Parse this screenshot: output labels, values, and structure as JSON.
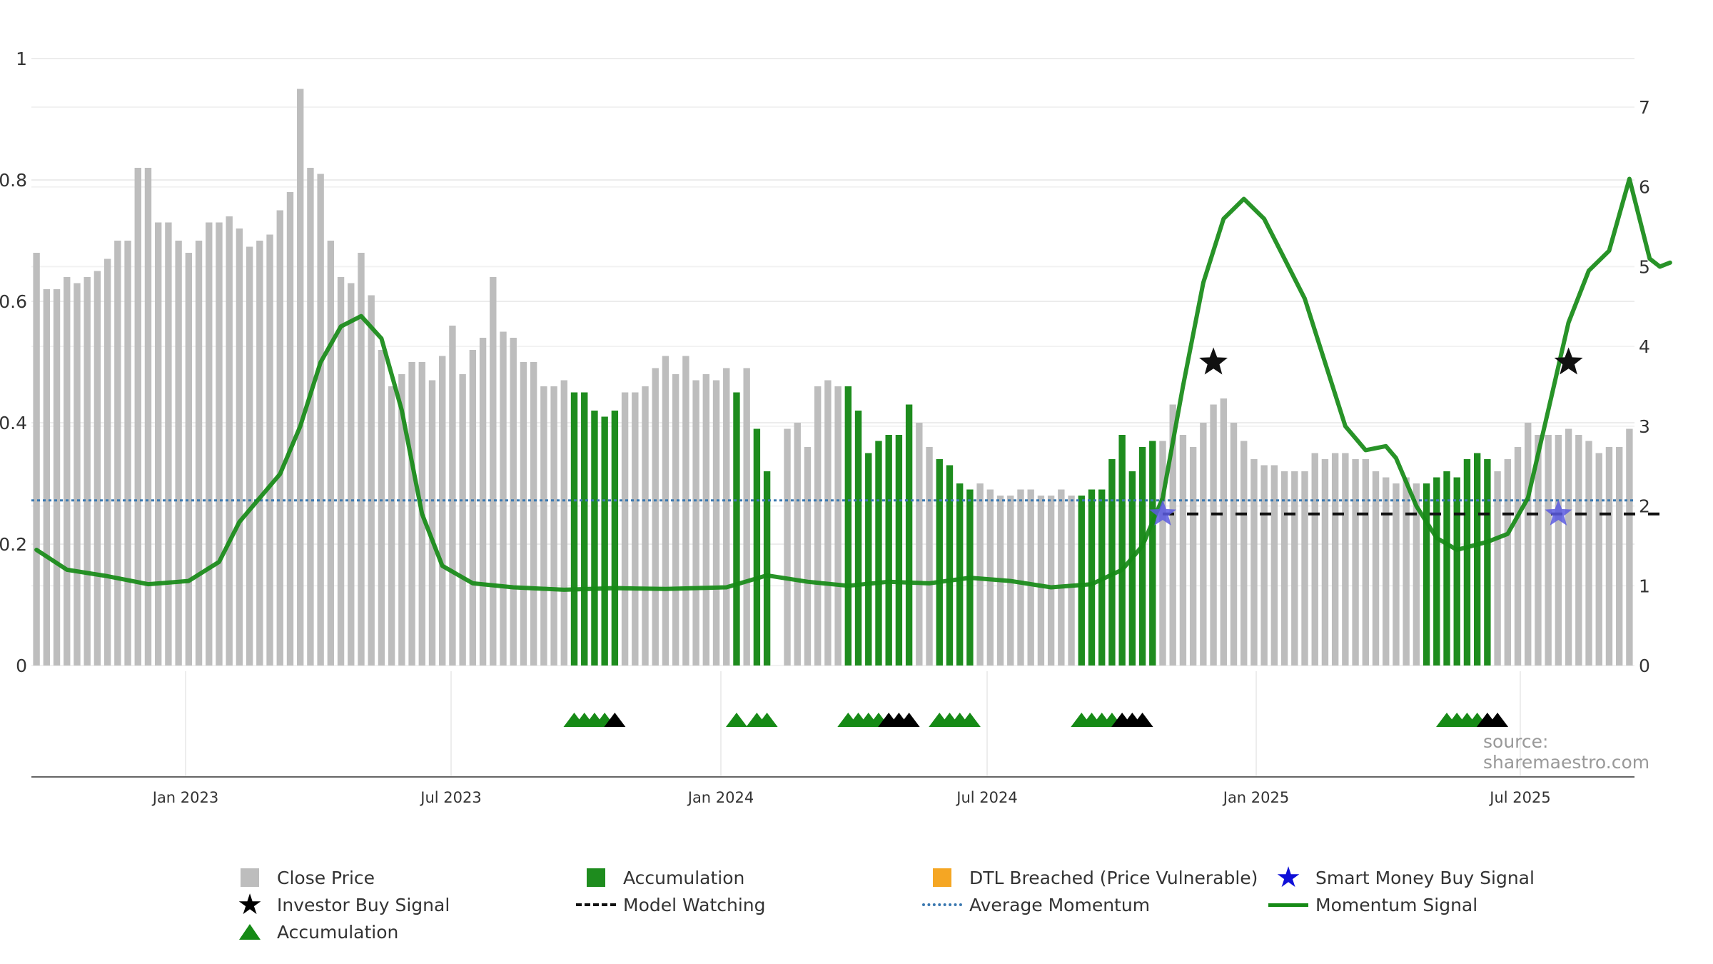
{
  "chart_data": {
    "type": "bar",
    "left_axis": {
      "ticks": [
        "0",
        "0.2",
        "0.4",
        "0.6",
        "0.8",
        "1"
      ],
      "range": [
        0,
        1
      ]
    },
    "right_axis": {
      "ticks": [
        "0",
        "1",
        "2",
        "3",
        "4",
        "5",
        "6",
        "7"
      ],
      "range": [
        0,
        7.6
      ]
    },
    "x_axis": {
      "ticks": [
        "Jan 2023",
        "Jul 2023",
        "Jan 2024",
        "Jul 2024",
        "Jan 2025",
        "Jul 2025"
      ]
    },
    "grid": true,
    "legend_position": "bottom",
    "series": [
      {
        "name": "Close Price",
        "type": "bar",
        "color": "#bdbdbd",
        "values": [
          0.68,
          0.62,
          0.62,
          0.64,
          0.63,
          0.64,
          0.65,
          0.67,
          0.7,
          0.7,
          0.82,
          0.82,
          0.73,
          0.73,
          0.7,
          0.68,
          0.7,
          0.73,
          0.73,
          0.74,
          0.72,
          0.69,
          0.7,
          0.71,
          0.75,
          0.78,
          0.95,
          0.82,
          0.81,
          0.7,
          0.64,
          0.63,
          0.68,
          0.61,
          0.52,
          0.46,
          0.48,
          0.5,
          0.5,
          0.47,
          0.51,
          0.56,
          0.48,
          0.52,
          0.54,
          0.64,
          0.55,
          0.54,
          0.5,
          0.5,
          0.46,
          0.46,
          0.47,
          0.45,
          0.45,
          0.42,
          0.41,
          0.42,
          0.45,
          0.45,
          0.46,
          0.49,
          0.51,
          0.48,
          0.51,
          0.47,
          0.48,
          0.47,
          0.49,
          0.45,
          0.49,
          0.39,
          0.32,
          null,
          0.39,
          0.4,
          0.36,
          0.46,
          0.47,
          0.46,
          0.46,
          0.42,
          0.35,
          0.37,
          0.38,
          0.38,
          0.43,
          0.4,
          0.36,
          0.34,
          0.33,
          0.3,
          0.29,
          0.3,
          0.29,
          0.28,
          0.28,
          0.29,
          0.29,
          0.28,
          0.28,
          0.29,
          0.28,
          0.28,
          0.29,
          0.29,
          0.34,
          0.38,
          0.32,
          0.36,
          0.37,
          0.37,
          0.43,
          0.38,
          0.36,
          0.4,
          0.43,
          0.44,
          0.4,
          0.37,
          0.34,
          0.33,
          0.33,
          0.32,
          0.32,
          0.32,
          0.35,
          0.34,
          0.35,
          0.35,
          0.34,
          0.34,
          0.32,
          0.31,
          0.3,
          0.31,
          0.3,
          0.3,
          0.31,
          0.32,
          0.31,
          0.34,
          0.35,
          0.34,
          0.32,
          0.34,
          0.36,
          0.4,
          0.38,
          0.38,
          0.38,
          0.39,
          0.38,
          0.37,
          0.35,
          0.36,
          0.36,
          0.39
        ]
      },
      {
        "name": "Accumulation",
        "type": "bar-highlight",
        "color": "#1e8c1e",
        "bar_indices": [
          53,
          54,
          55,
          56,
          57,
          69,
          71,
          72,
          80,
          81,
          82,
          83,
          84,
          85,
          86,
          89,
          90,
          91,
          92,
          103,
          104,
          105,
          106,
          107,
          108,
          109,
          110,
          137,
          138,
          139,
          140,
          141,
          142,
          143
        ]
      },
      {
        "name": "Momentum Signal",
        "type": "line",
        "axis": "right",
        "color": "#168a16",
        "points": [
          [
            0,
            1.45
          ],
          [
            3,
            1.2
          ],
          [
            7,
            1.12
          ],
          [
            11,
            1.02
          ],
          [
            15,
            1.06
          ],
          [
            18,
            1.3
          ],
          [
            20,
            1.8
          ],
          [
            22,
            2.1
          ],
          [
            24,
            2.4
          ],
          [
            26,
            3.0
          ],
          [
            28,
            3.8
          ],
          [
            30,
            4.25
          ],
          [
            32,
            4.38
          ],
          [
            34,
            4.1
          ],
          [
            36,
            3.2
          ],
          [
            38,
            1.9
          ],
          [
            40,
            1.25
          ],
          [
            43,
            1.03
          ],
          [
            47,
            0.98
          ],
          [
            52,
            0.95
          ],
          [
            57,
            0.97
          ],
          [
            62,
            0.96
          ],
          [
            68,
            0.98
          ],
          [
            72,
            1.13
          ],
          [
            76,
            1.05
          ],
          [
            80,
            1.0
          ],
          [
            84,
            1.05
          ],
          [
            88,
            1.03
          ],
          [
            92,
            1.1
          ],
          [
            96,
            1.06
          ],
          [
            100,
            0.98
          ],
          [
            104,
            1.02
          ],
          [
            107,
            1.2
          ],
          [
            109,
            1.5
          ],
          [
            111,
            2.1
          ],
          [
            113,
            3.5
          ],
          [
            115,
            4.8
          ],
          [
            117,
            5.6
          ],
          [
            119,
            5.85
          ],
          [
            121,
            5.6
          ],
          [
            123,
            5.1
          ],
          [
            125,
            4.6
          ],
          [
            127,
            3.8
          ],
          [
            129,
            3.0
          ],
          [
            131,
            2.7
          ],
          [
            133,
            2.75
          ],
          [
            134,
            2.6
          ],
          [
            136,
            2.0
          ],
          [
            138,
            1.6
          ],
          [
            140,
            1.45
          ],
          [
            143,
            1.55
          ],
          [
            145,
            1.65
          ],
          [
            147,
            2.1
          ],
          [
            149,
            3.2
          ],
          [
            151,
            4.3
          ],
          [
            153,
            4.95
          ],
          [
            155,
            5.2
          ],
          [
            157,
            6.1
          ],
          [
            159,
            5.1
          ],
          [
            160,
            5.0
          ],
          [
            161,
            5.05
          ]
        ]
      },
      {
        "name": "Average Momentum",
        "type": "hline",
        "axis": "right",
        "color": "#3a78b0",
        "value": 2.07
      },
      {
        "name": "Model Watching",
        "type": "dash-segment",
        "axis": "right",
        "color": "#111111",
        "value": 1.9,
        "segments": [
          [
            111,
            161
          ]
        ]
      },
      {
        "name": "Smart Money Buy Signal",
        "type": "marker",
        "axis": "right",
        "color": "#5a5ae0",
        "points": [
          [
            111,
            1.9
          ],
          [
            150,
            1.9
          ]
        ]
      },
      {
        "name": "Investor Buy Signal",
        "type": "marker",
        "axis": "right",
        "color": "#111111",
        "points": [
          [
            116,
            3.8
          ],
          [
            151,
            3.8
          ]
        ]
      },
      {
        "name": "Accumulation",
        "type": "triangle-markers",
        "groups": [
          {
            "green": [
              53,
              54,
              55,
              56
            ],
            "black": [
              57
            ]
          },
          {
            "green": [
              69,
              71,
              72
            ],
            "black": []
          },
          {
            "green": [
              80,
              81,
              82,
              83
            ],
            "black": [
              84,
              85,
              86
            ]
          },
          {
            "green": [
              89,
              90,
              91,
              92
            ],
            "black": []
          },
          {
            "green": [
              103,
              104,
              105,
              106
            ],
            "black": [
              107,
              108,
              109
            ]
          },
          {
            "green": [
              139,
              140,
              141,
              142
            ],
            "black": [
              143,
              144
            ]
          }
        ]
      }
    ]
  },
  "legend": [
    {
      "label": "Close Price",
      "symbol": "gray-square"
    },
    {
      "label": "Accumulation",
      "symbol": "green-square"
    },
    {
      "label": "DTL Breached (Price Vulnerable)",
      "symbol": "orange-square"
    },
    {
      "label": "Smart Money Buy Signal",
      "symbol": "blue-star"
    },
    {
      "label": "Investor Buy Signal",
      "symbol": "black-star"
    },
    {
      "label": "Model Watching",
      "symbol": "dashed-line"
    },
    {
      "label": "Average Momentum",
      "symbol": "dotted-line"
    },
    {
      "label": "Momentum Signal",
      "symbol": "solid-line"
    },
    {
      "label": "Accumulation",
      "symbol": "green-triangle"
    }
  ],
  "source": "source: sharemaestro.com",
  "icons": {
    "star": "★",
    "triangle": "▲"
  }
}
